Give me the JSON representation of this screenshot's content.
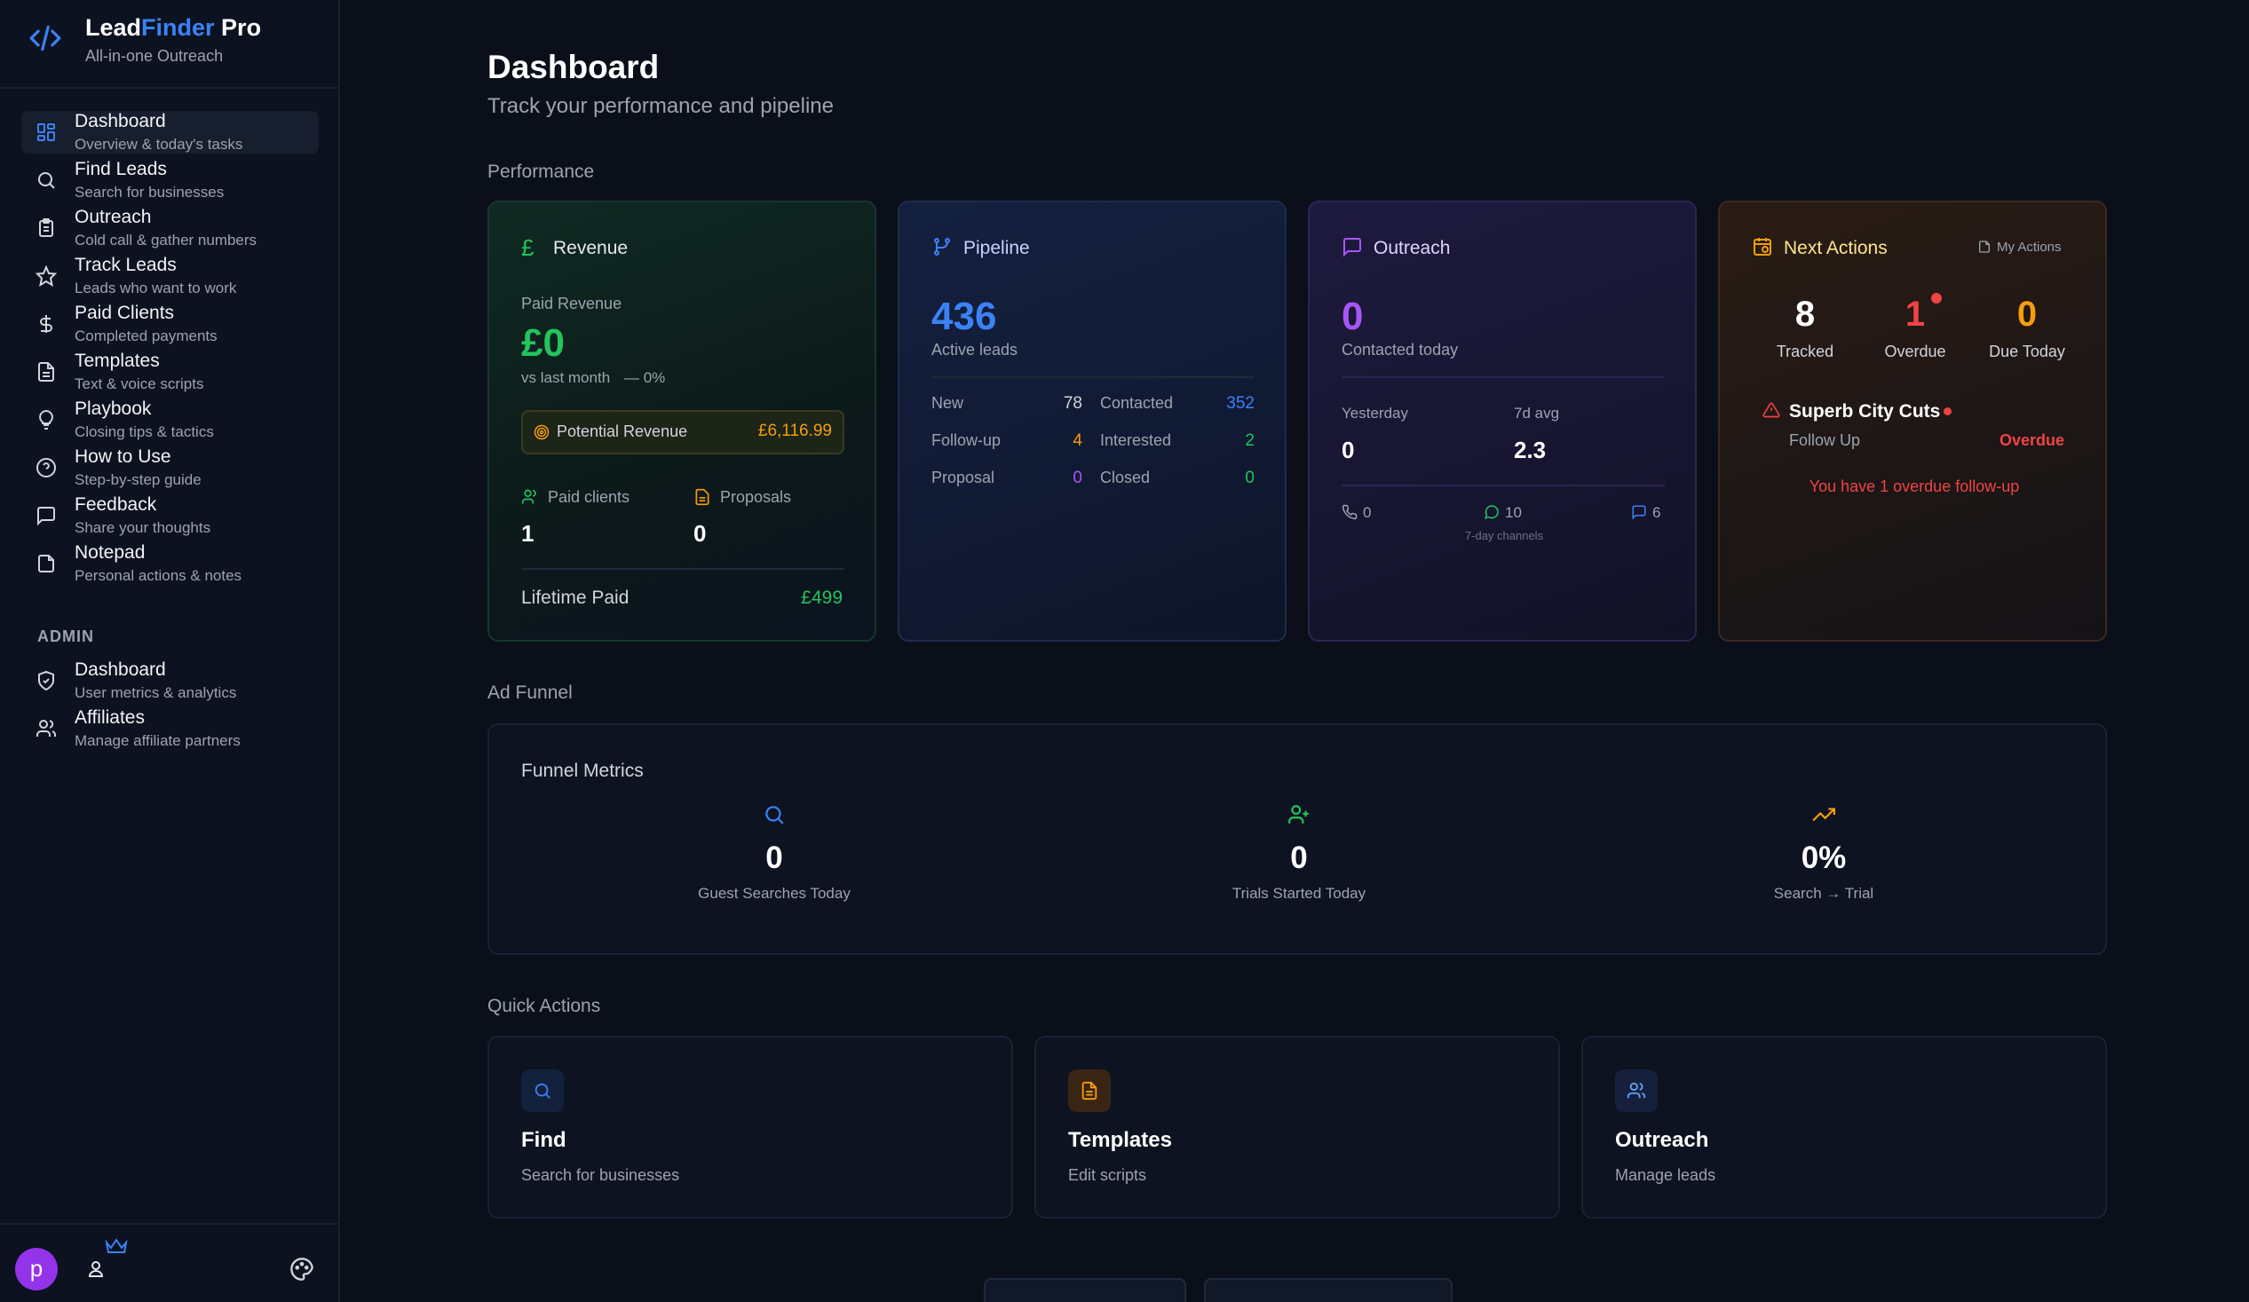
{
  "brand": {
    "title_a": "Lead",
    "title_b": "Finder",
    "title_c": " Pro",
    "subtitle": "All-in-one Outreach"
  },
  "nav": [
    {
      "label": "Dashboard",
      "sub": "Overview & today's tasks",
      "icon": "grid-icon",
      "active": true
    },
    {
      "label": "Find Leads",
      "sub": "Search for businesses",
      "icon": "search-icon"
    },
    {
      "label": "Outreach",
      "sub": "Cold call & gather numbers",
      "icon": "clipboard-icon"
    },
    {
      "label": "Track Leads",
      "sub": "Leads who want to work",
      "icon": "star-icon"
    },
    {
      "label": "Paid Clients",
      "sub": "Completed payments",
      "icon": "dollar-icon"
    },
    {
      "label": "Templates",
      "sub": "Text & voice scripts",
      "icon": "document-icon"
    },
    {
      "label": "Playbook",
      "sub": "Closing tips & tactics",
      "icon": "lightbulb-icon"
    },
    {
      "label": "How to Use",
      "sub": "Step-by-step guide",
      "icon": "help-circle-icon"
    },
    {
      "label": "Feedback",
      "sub": "Share your thoughts",
      "icon": "message-icon"
    },
    {
      "label": "Notepad",
      "sub": "Personal actions & notes",
      "icon": "note-icon"
    }
  ],
  "admin": {
    "heading": "ADMIN",
    "items": [
      {
        "label": "Dashboard",
        "sub": "User metrics & analytics",
        "icon": "shield-icon"
      },
      {
        "label": "Affiliates",
        "sub": "Manage affiliate partners",
        "icon": "users-icon"
      }
    ]
  },
  "user": {
    "avatar_letter": "p"
  },
  "header": {
    "title": "Dashboard",
    "subtitle": "Track your performance and pipeline"
  },
  "sections": {
    "performance": "Performance",
    "ad_funnel": "Ad Funnel",
    "quick_actions": "Quick Actions"
  },
  "revenue": {
    "title": "Revenue",
    "icon": "pound-icon",
    "paid_label": "Paid Revenue",
    "paid_value": "£0",
    "vs_label": "vs last month",
    "vs_value": "— 0%",
    "potential_label": "Potential Revenue",
    "potential_value": "£6,116.99",
    "paid_clients_label": "Paid clients",
    "paid_clients_value": "1",
    "proposals_label": "Proposals",
    "proposals_value": "0",
    "lifetime_label": "Lifetime Paid",
    "lifetime_value": "£499"
  },
  "pipeline": {
    "title": "Pipeline",
    "icon": "branch-icon",
    "active_value": "436",
    "active_label": "Active leads",
    "rows": [
      {
        "l1": "New",
        "v1": "78",
        "l2": "Contacted",
        "v2": "352"
      },
      {
        "l1": "Follow-up",
        "v1": "4",
        "l2": "Interested",
        "v2": "2"
      },
      {
        "l1": "Proposal",
        "v1": "0",
        "l2": "Closed",
        "v2": "0"
      }
    ]
  },
  "outreach": {
    "title": "Outreach",
    "icon": "message-square-icon",
    "today_value": "0",
    "today_label": "Contacted today",
    "yesterday_label": "Yesterday",
    "yesterday_value": "0",
    "avg_label": "7d avg",
    "avg_value": "2.3",
    "calls": "0",
    "whatsapp": "10",
    "sms": "6",
    "channels_label": "7-day channels"
  },
  "next_actions": {
    "title": "Next Actions",
    "icon": "calendar-clock-icon",
    "my_actions": "My Actions",
    "tracked_value": "8",
    "tracked_label": "Tracked",
    "overdue_value": "1",
    "overdue_label": "Overdue",
    "due_value": "0",
    "due_label": "Due Today",
    "lead_name": "Superb City Cuts",
    "lead_status": "Follow Up",
    "lead_badge": "Overdue",
    "warning": "You have 1 overdue follow-up"
  },
  "funnel": {
    "title": "Funnel Metrics",
    "metrics": [
      {
        "value": "0",
        "label": "Guest Searches Today",
        "icon": "search-icon"
      },
      {
        "value": "0",
        "label": "Trials Started Today",
        "icon": "user-plus-icon"
      },
      {
        "value": "0%",
        "label": "Search → Trial",
        "icon": "trending-up-icon"
      }
    ]
  },
  "quick_actions": [
    {
      "title": "Find",
      "sub": "Search for businesses",
      "icon": "search-icon"
    },
    {
      "title": "Templates",
      "sub": "Edit scripts",
      "icon": "document-icon"
    },
    {
      "title": "Outreach",
      "sub": "Manage leads",
      "icon": "users-icon"
    }
  ],
  "colors": {
    "accent": "#3b82f6",
    "green": "#22c55e",
    "purple": "#a855f7",
    "orange": "#f59e0b",
    "red": "#ef4444"
  }
}
